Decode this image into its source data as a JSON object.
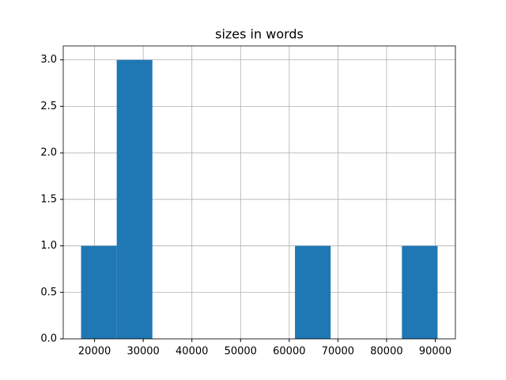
{
  "chart_data": {
    "type": "histogram",
    "title": "sizes in words",
    "bins": [
      17230,
      24555,
      31880,
      39205,
      46530,
      53855,
      61180,
      68505,
      75830,
      83155,
      90480
    ],
    "values": [
      1,
      3,
      0,
      0,
      0,
      0,
      1,
      0,
      0,
      1
    ],
    "color": "#1f77b4",
    "xlim": [
      13568,
      94142
    ],
    "xticks": [
      20000,
      30000,
      40000,
      50000,
      60000,
      70000,
      80000,
      90000
    ],
    "ylim": [
      0,
      3.15
    ],
    "yticks": [
      {
        "value": 0,
        "label": "0.0"
      },
      {
        "value": 0.5,
        "label": "0.5"
      },
      {
        "value": 1,
        "label": "1.0"
      },
      {
        "value": 1.5,
        "label": "1.5"
      },
      {
        "value": 2,
        "label": "2.0"
      },
      {
        "value": 2.5,
        "label": "2.5"
      },
      {
        "value": 3,
        "label": "3.0"
      }
    ],
    "grid": true
  }
}
